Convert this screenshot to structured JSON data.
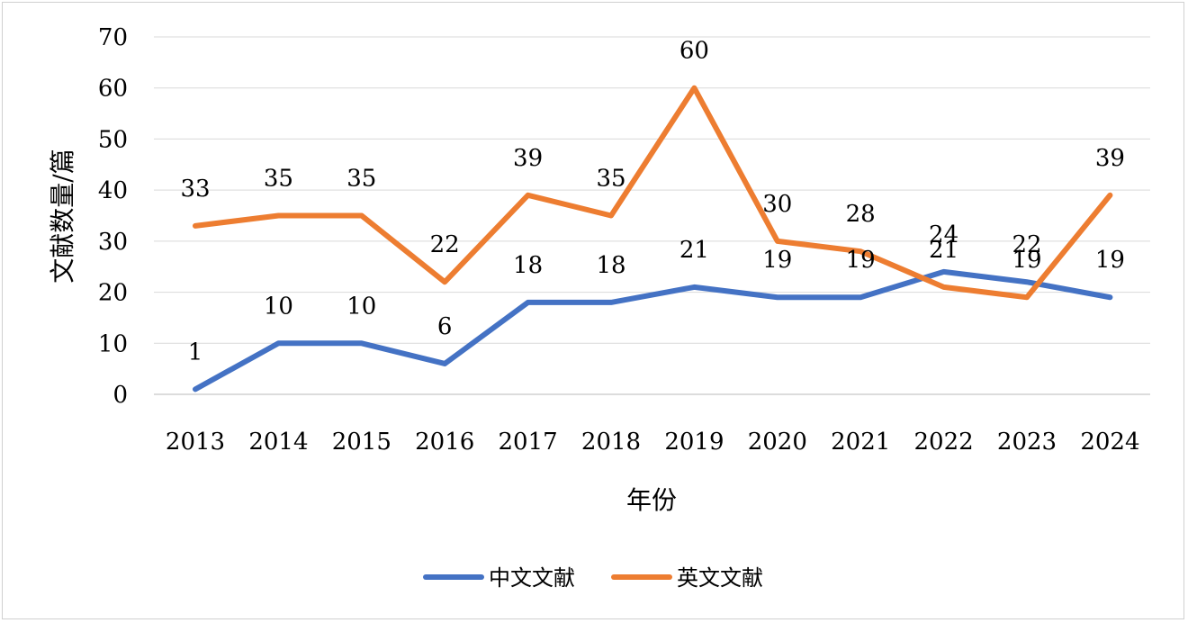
{
  "chart_data": {
    "type": "line",
    "title": "",
    "xlabel": "年份",
    "ylabel": "文献数量/篇",
    "categories": [
      "2013",
      "2014",
      "2015",
      "2016",
      "2017",
      "2018",
      "2019",
      "2020",
      "2021",
      "2022",
      "2023",
      "2024"
    ],
    "ylim": [
      0,
      70
    ],
    "yticks": [
      0,
      10,
      20,
      30,
      40,
      50,
      60,
      70
    ],
    "grid": true,
    "legend_position": "bottom",
    "series": [
      {
        "name": "中文文献",
        "color": "#4472C4",
        "values": [
          1,
          10,
          10,
          6,
          18,
          18,
          21,
          19,
          19,
          24,
          22,
          19
        ]
      },
      {
        "name": "英文文献",
        "color": "#ED7D31",
        "values": [
          33,
          35,
          35,
          22,
          39,
          35,
          60,
          30,
          28,
          21,
          19,
          39
        ]
      }
    ]
  }
}
